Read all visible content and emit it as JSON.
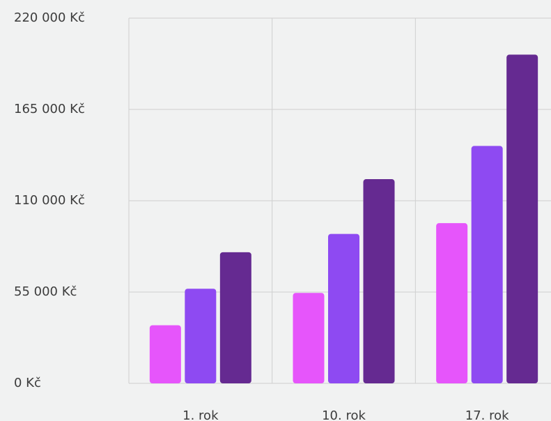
{
  "chart_data": {
    "type": "bar",
    "categories": [
      "1. rok",
      "10. rok",
      "17. rok"
    ],
    "series": [
      {
        "color": "#e655fb",
        "values": [
          35000,
          54500,
          96500
        ]
      },
      {
        "color": "#8e4af2",
        "values": [
          57000,
          90000,
          143000
        ]
      },
      {
        "color": "#652a91",
        "values": [
          79000,
          123000,
          198000
        ]
      }
    ],
    "ylim": [
      0,
      220000
    ],
    "yticks": [
      {
        "value": 0,
        "label": "0 Kč"
      },
      {
        "value": 55000,
        "label": "55 000 Kč"
      },
      {
        "value": 110000,
        "label": "110 000 Kč"
      },
      {
        "value": 165000,
        "label": "165 000 Kč"
      },
      {
        "value": 220000,
        "label": "220 000 Kč"
      }
    ],
    "grid": true
  }
}
